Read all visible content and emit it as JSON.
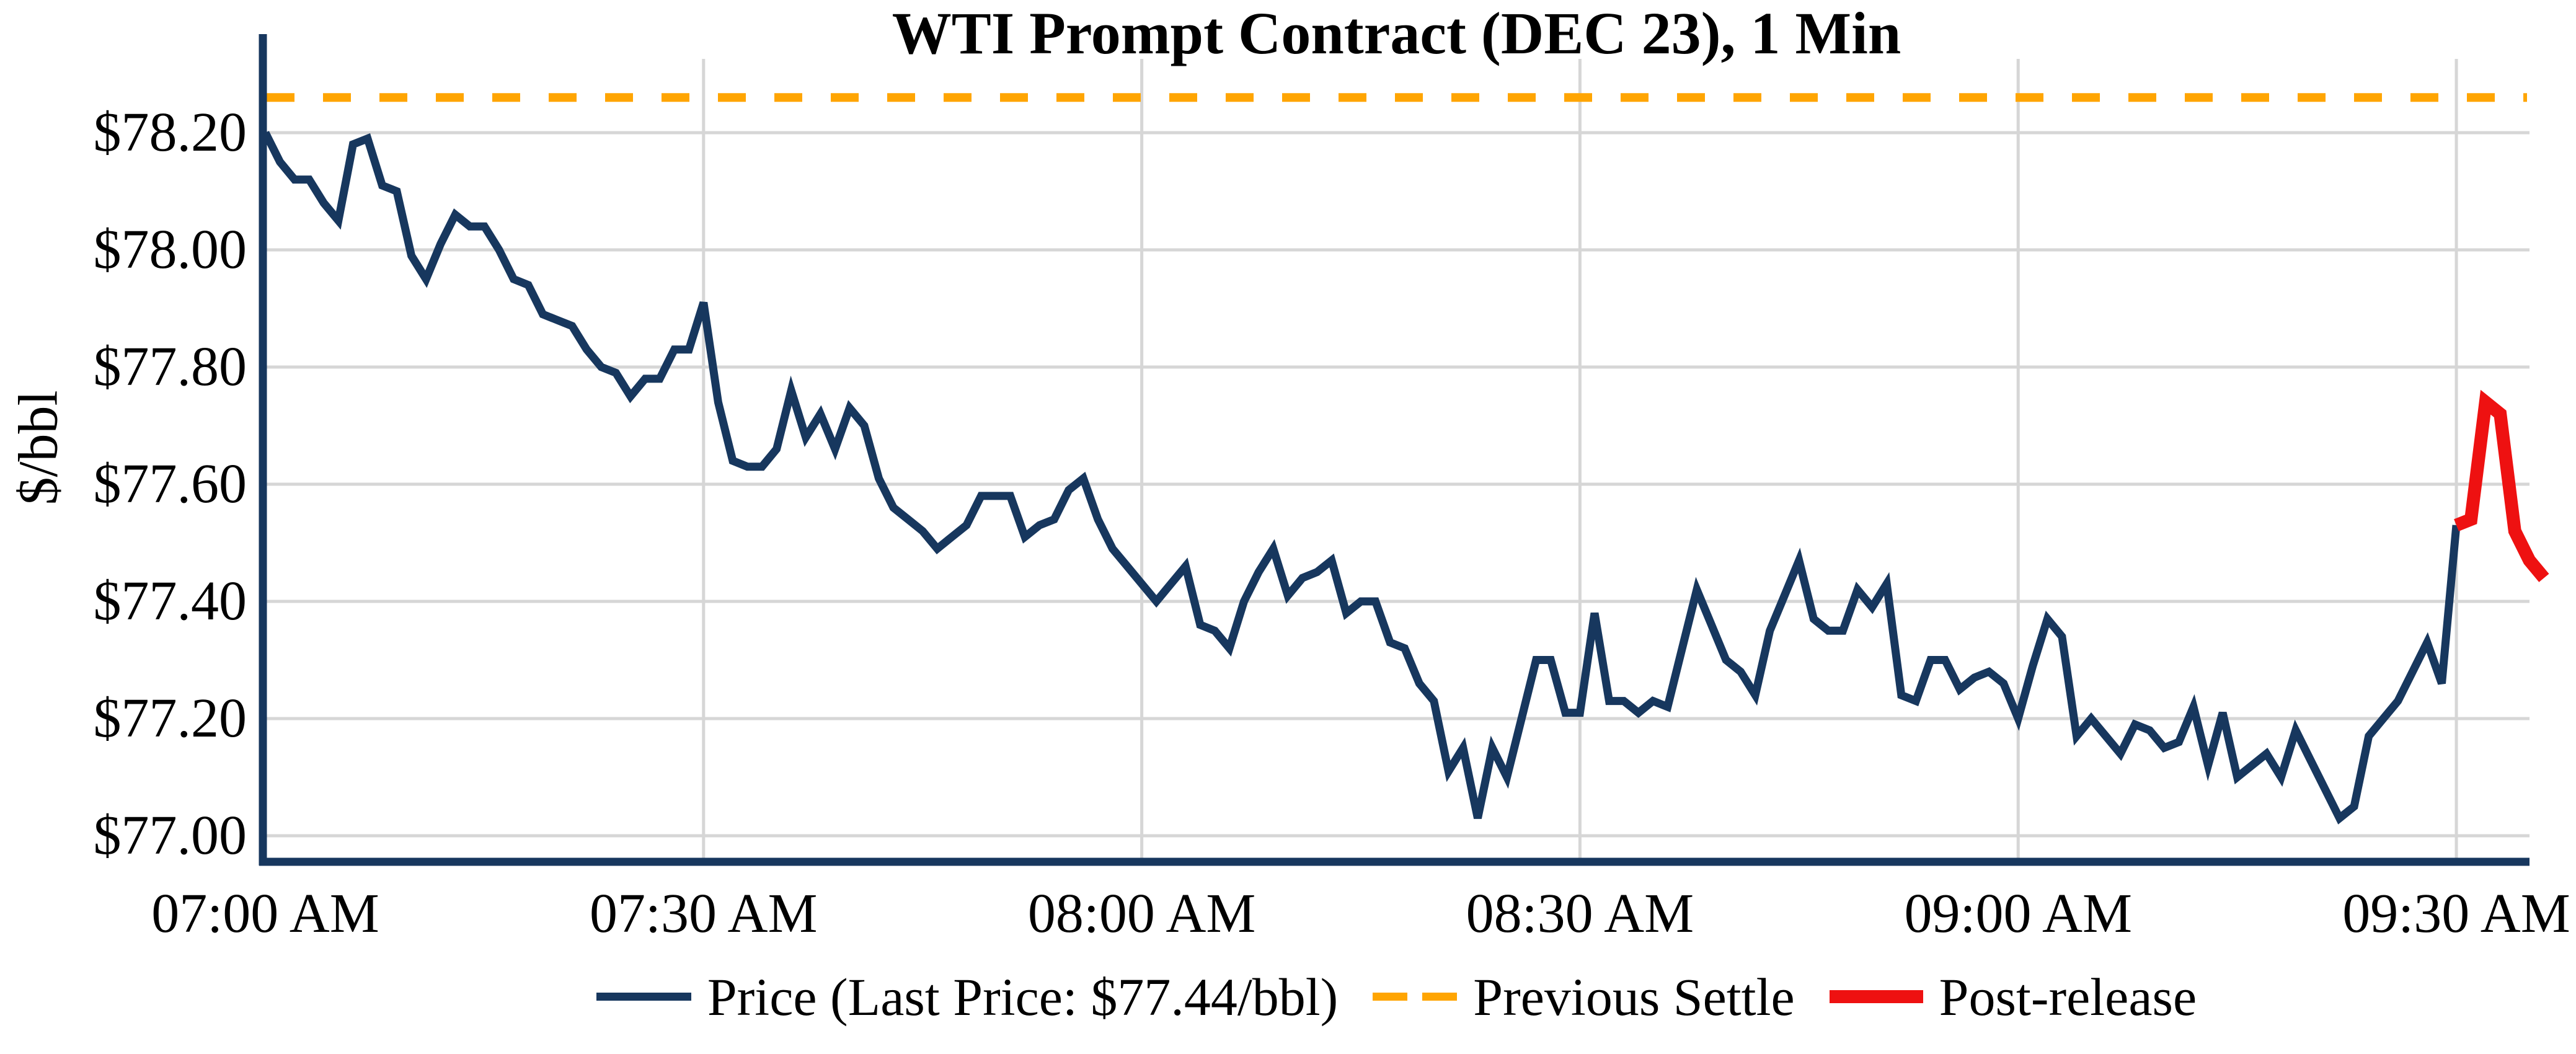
{
  "title": "WTI Prompt Contract (DEC 23), 1 Min",
  "y_axis": {
    "label": "$/bbl",
    "ticks": [
      "$77.00",
      "$77.20",
      "$77.40",
      "$77.60",
      "$77.80",
      "$78.00",
      "$78.20"
    ],
    "tick_values": [
      77.0,
      77.2,
      77.4,
      77.6,
      77.8,
      78.0,
      78.2
    ]
  },
  "x_axis": {
    "ticks": [
      "07:00 AM",
      "07:30 AM",
      "08:00 AM",
      "08:30 AM",
      "09:00 AM",
      "09:30 AM"
    ],
    "tick_minutes": [
      0,
      30,
      60,
      90,
      120,
      150
    ]
  },
  "legend": {
    "price_label": "Price (Last Price: $77.44/bbl)",
    "settle_label": "Previous Settle",
    "post_label": "Post-release"
  },
  "colors": {
    "price": "#17375e",
    "settle": "#ffa502",
    "post": "#ee1111",
    "grid": "#d6d6d6",
    "text": "#000000"
  },
  "chart_data": {
    "type": "line",
    "title": "WTI Prompt Contract (DEC 23), 1 Min",
    "xlabel": "",
    "ylabel": "$/bbl",
    "x_tick_labels": [
      "07:00 AM",
      "07:30 AM",
      "08:00 AM",
      "08:30 AM",
      "09:00 AM",
      "09:30 AM"
    ],
    "y_tick_labels": [
      "$77.00",
      "$77.20",
      "$77.40",
      "$77.60",
      "$77.80",
      "$78.00",
      "$78.20"
    ],
    "ylim": [
      76.955,
      78.37
    ],
    "x_start_time": "07:00 AM",
    "x_end_time": "09:36 AM",
    "interval_minutes": 1,
    "grid": true,
    "legend_position": "bottom-center",
    "previous_settle": 78.26,
    "last_price": 77.44,
    "series": [
      {
        "name": "Price (Last Price: $77.44/bbl)",
        "style": "solid",
        "start_minute": 0,
        "values": [
          78.2,
          78.15,
          78.12,
          78.12,
          78.08,
          78.05,
          78.18,
          78.19,
          78.11,
          78.1,
          77.99,
          77.95,
          78.01,
          78.06,
          78.04,
          78.04,
          78.0,
          77.95,
          77.94,
          77.89,
          77.88,
          77.87,
          77.83,
          77.8,
          77.79,
          77.75,
          77.78,
          77.78,
          77.83,
          77.83,
          77.91,
          77.74,
          77.64,
          77.63,
          77.63,
          77.66,
          77.76,
          77.68,
          77.72,
          77.66,
          77.73,
          77.7,
          77.61,
          77.56,
          77.54,
          77.52,
          77.49,
          77.51,
          77.53,
          77.58,
          77.58,
          77.58,
          77.51,
          77.53,
          77.54,
          77.59,
          77.61,
          77.54,
          77.49,
          77.46,
          77.43,
          77.4,
          77.43,
          77.46,
          77.36,
          77.35,
          77.32,
          77.4,
          77.45,
          77.49,
          77.41,
          77.44,
          77.45,
          77.47,
          77.38,
          77.4,
          77.4,
          77.33,
          77.32,
          77.26,
          77.23,
          77.11,
          77.15,
          77.03,
          77.15,
          77.1,
          77.2,
          77.3,
          77.3,
          77.21,
          77.21,
          77.38,
          77.23,
          77.23,
          77.21,
          77.23,
          77.22,
          77.32,
          77.42,
          77.36,
          77.3,
          77.28,
          77.24,
          77.35,
          77.41,
          77.47,
          77.37,
          77.35,
          77.35,
          77.42,
          77.39,
          77.43,
          77.24,
          77.23,
          77.3,
          77.3,
          77.25,
          77.27,
          77.28,
          77.26,
          77.2,
          77.29,
          77.37,
          77.34,
          77.17,
          77.2,
          77.17,
          77.14,
          77.19,
          77.18,
          77.15,
          77.16,
          77.22,
          77.12,
          77.21,
          77.1,
          77.12,
          77.14,
          77.1,
          77.18,
          77.13,
          77.08,
          77.03,
          77.05,
          77.17,
          77.2,
          77.23,
          77.28,
          77.33,
          77.26,
          77.53
        ]
      },
      {
        "name": "Post-release",
        "style": "solid",
        "start_minute": 150,
        "values": [
          77.53,
          77.54,
          77.74,
          77.72,
          77.52,
          77.47,
          77.44
        ]
      },
      {
        "name": "Previous Settle",
        "style": "dashed",
        "constant_value": 78.26
      }
    ]
  }
}
